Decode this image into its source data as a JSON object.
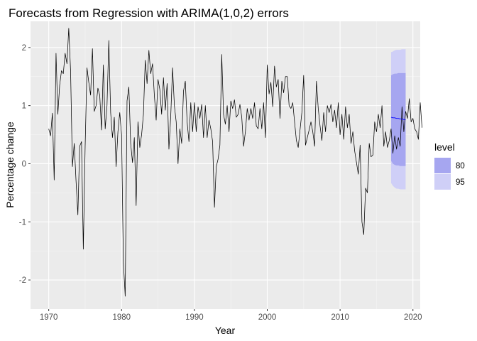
{
  "chart_data": {
    "type": "line",
    "title": "Forecasts from Regression with ARIMA(1,0,2) errors",
    "xlabel": "Year",
    "ylabel": "Percentage change",
    "xlim": [
      1967.5,
      2021.0
    ],
    "ylim": [
      -2.5,
      2.45
    ],
    "x_ticks": [
      1970,
      1980,
      1990,
      2000,
      2010,
      2020
    ],
    "y_ticks": [
      -2,
      -1,
      0,
      1,
      2
    ],
    "grid": true,
    "background": "#ebebeb",
    "line_color": "#000000",
    "forecast_line_color": "#0000ff",
    "legend": {
      "title": "level",
      "placement": "right",
      "items": [
        {
          "label": "80",
          "color": "#a6a6f0"
        },
        {
          "label": "95",
          "color": "#cfcff7"
        }
      ]
    },
    "series": [
      {
        "start": 1970.0,
        "step": 0.25,
        "values": [
          0.6,
          0.48,
          0.87,
          -0.28,
          1.9,
          0.85,
          1.35,
          1.6,
          1.55,
          1.9,
          1.72,
          2.33,
          1.6,
          -0.05,
          0.35,
          -0.3,
          -0.88,
          0.3,
          0.38,
          -1.47,
          0.3,
          1.65,
          1.4,
          1.18,
          1.98,
          0.9,
          1.0,
          1.3,
          1.18,
          0.58,
          1.7,
          0.6,
          1.0,
          2.12,
          0.88,
          0.45,
          0.8,
          -0.05,
          0.55,
          0.88,
          0.5,
          -1.7,
          -2.28,
          1.08,
          1.32,
          0.35,
          0.02,
          0.45,
          -0.72,
          0.72,
          0.28,
          0.5,
          0.85,
          1.78,
          1.38,
          1.95,
          1.55,
          1.72,
          1.18,
          0.75,
          1.45,
          1.28,
          0.85,
          1.48,
          0.92,
          1.38,
          0.25,
          0.82,
          1.65,
          1.0,
          0.72,
          0.0,
          0.6,
          0.35,
          1.25,
          1.42,
          0.72,
          0.38,
          1.05,
          0.55,
          1.05,
          0.55,
          0.98,
          0.78,
          1.02,
          0.45,
          1.0,
          0.45,
          0.75,
          0.6,
          0.38,
          -0.75,
          -0.05,
          0.08,
          0.32,
          1.88,
          0.85,
          0.68,
          1.0,
          0.55,
          1.08,
          0.95,
          1.1,
          0.8,
          0.85,
          1.02,
          0.8,
          0.3,
          0.55,
          0.95,
          0.75,
          0.95,
          0.78,
          1.05,
          0.65,
          0.6,
          0.95,
          0.6,
          1.05,
          0.45,
          1.7,
          1.2,
          1.4,
          0.98,
          1.68,
          1.32,
          1.45,
          0.78,
          1.42,
          1.22,
          1.5,
          1.5,
          1.0,
          0.95,
          1.05,
          0.72,
          0.4,
          0.28,
          0.58,
          0.88,
          1.52,
          0.32,
          0.45,
          0.58,
          0.72,
          0.55,
          0.3,
          1.42,
          0.95,
          0.65,
          0.4,
          0.88,
          0.55,
          1.0,
          0.88,
          1.02,
          0.72,
          0.92,
          0.62,
          1.05,
          0.5,
          0.85,
          0.42,
          0.98,
          0.62,
          0.85,
          0.35,
          0.55,
          0.22,
          0.02,
          -0.18,
          0.32,
          -1.0,
          -1.22,
          -0.42,
          -0.5,
          0.35,
          0.12,
          0.15,
          0.72,
          0.55,
          0.85,
          0.62,
          1.0,
          0.3,
          0.55,
          0.28,
          0.4,
          0.6,
          0.18,
          0.48,
          0.25,
          0.45,
          0.3,
          0.98,
          0.55,
          0.9,
          0.78,
          1.12,
          0.72,
          0.78,
          0.6,
          0.55,
          0.42,
          1.05,
          0.62
        ]
      },
      {
        "name": "forecast",
        "start": 2017.0,
        "step": 0.25,
        "values": [
          0.8,
          0.79,
          0.79,
          0.78,
          0.78,
          0.77,
          0.77,
          0.76,
          0.76
        ]
      }
    ],
    "intervals": [
      {
        "level": "80",
        "x": [
          2017.0,
          2017.25,
          2017.5,
          2017.75,
          2018.0,
          2018.25,
          2018.5,
          2018.75,
          2019.0
        ],
        "lower": [
          0.05,
          0.0,
          -0.02,
          -0.03,
          -0.03,
          -0.04,
          -0.04,
          -0.04,
          -0.04
        ],
        "upper": [
          1.52,
          1.54,
          1.55,
          1.55,
          1.56,
          1.56,
          1.56,
          1.56,
          1.56
        ]
      },
      {
        "level": "95",
        "x": [
          2017.0,
          2017.25,
          2017.5,
          2017.75,
          2018.0,
          2018.25,
          2018.5,
          2018.75,
          2019.0
        ],
        "lower": [
          -0.33,
          -0.38,
          -0.41,
          -0.43,
          -0.43,
          -0.44,
          -0.44,
          -0.44,
          -0.44
        ],
        "upper": [
          1.92,
          1.93,
          1.95,
          1.96,
          1.96,
          1.96,
          1.97,
          1.97,
          1.97
        ]
      }
    ]
  }
}
